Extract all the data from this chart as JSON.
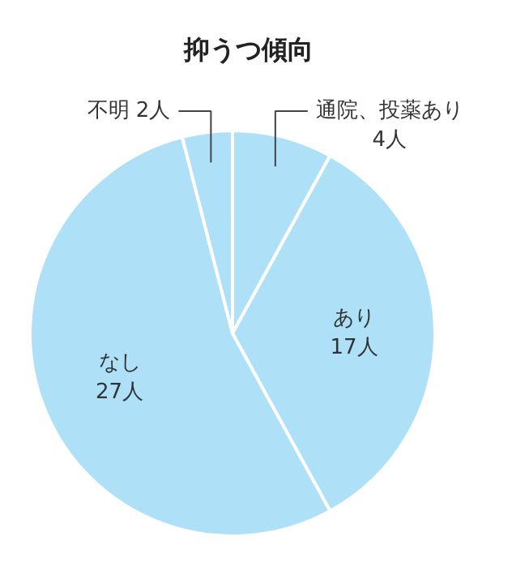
{
  "chart_data": {
    "type": "pie",
    "title": "抑うつ傾向",
    "categories": [
      "通院、投薬あり",
      "あり",
      "なし",
      "不明"
    ],
    "values": [
      4,
      17,
      27,
      2
    ],
    "value_labels": [
      "4人",
      "17人",
      "27人",
      "2人"
    ],
    "colors": [
      "#aee1f8",
      "#aee1f8",
      "#aee1f8",
      "#aee1f8"
    ]
  }
}
